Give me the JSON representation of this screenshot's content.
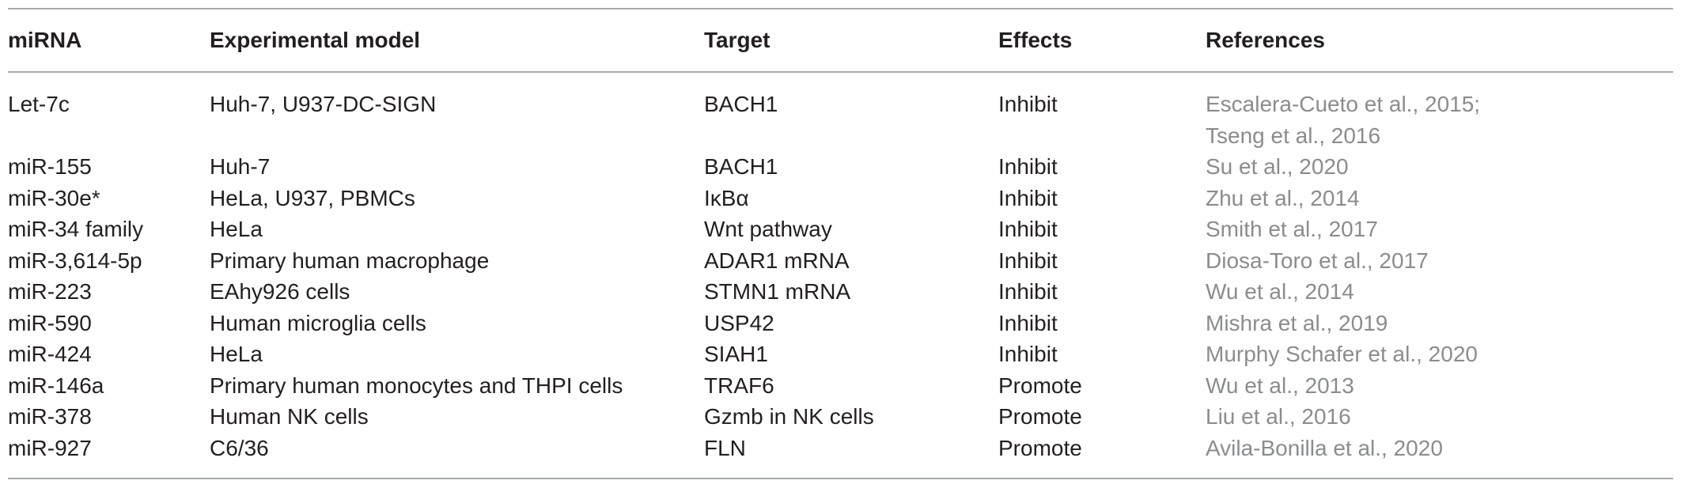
{
  "table": {
    "headers": [
      "miRNA",
      "Experimental model",
      "Target",
      "Effects",
      "References"
    ],
    "rows": [
      {
        "mirna": "Let-7c",
        "model": "Huh-7, U937-DC-SIGN",
        "target": "BACH1",
        "effect": "Inhibit",
        "ref_line1": "Escalera-Cueto et al., 2015;",
        "ref_line2": "Tseng et al., 2016"
      },
      {
        "mirna": "miR-155",
        "model": "Huh-7",
        "target": "BACH1",
        "effect": "Inhibit",
        "ref_line1": "Su et al., 2020"
      },
      {
        "mirna": "miR-30e*",
        "model": "HeLa, U937, PBMCs",
        "target": "IκBα",
        "effect": "Inhibit",
        "ref_line1": "Zhu et al., 2014"
      },
      {
        "mirna": "miR-34 family",
        "model": "HeLa",
        "target": "Wnt pathway",
        "effect": "Inhibit",
        "ref_line1": "Smith et al., 2017"
      },
      {
        "mirna": "miR-3,614-5p",
        "model": "Primary human macrophage",
        "target": "ADAR1 mRNA",
        "effect": "Inhibit",
        "ref_line1": "Diosa-Toro et al., 2017"
      },
      {
        "mirna": "miR-223",
        "model": "EAhy926 cells",
        "target": "STMN1 mRNA",
        "effect": "Inhibit",
        "ref_line1": "Wu et al., 2014"
      },
      {
        "mirna": "miR-590",
        "model": "Human microglia cells",
        "target": "USP42",
        "effect": "Inhibit",
        "ref_line1": "Mishra et al., 2019"
      },
      {
        "mirna": "miR-424",
        "model": "HeLa",
        "target": "SIAH1",
        "effect": "Inhibit",
        "ref_line1": "Murphy Schafer et al., 2020"
      },
      {
        "mirna": "miR-146a",
        "model": "Primary human monocytes and THPI cells",
        "target": "TRAF6",
        "effect": "Promote",
        "ref_line1": "Wu et al., 2013"
      },
      {
        "mirna": "miR-378",
        "model": "Human NK cells",
        "target": "Gzmb in NK cells",
        "effect": "Promote",
        "ref_line1": "Liu et al., 2016"
      },
      {
        "mirna": "miR-927",
        "model": "C6/36",
        "target": "FLN",
        "effect": "Promote",
        "ref_line1": "Avila-Bonilla et al., 2020"
      }
    ]
  },
  "colors": {
    "text": "#231f20",
    "reference_text": "#8a8c8e",
    "rule": "#a7a9ac"
  }
}
